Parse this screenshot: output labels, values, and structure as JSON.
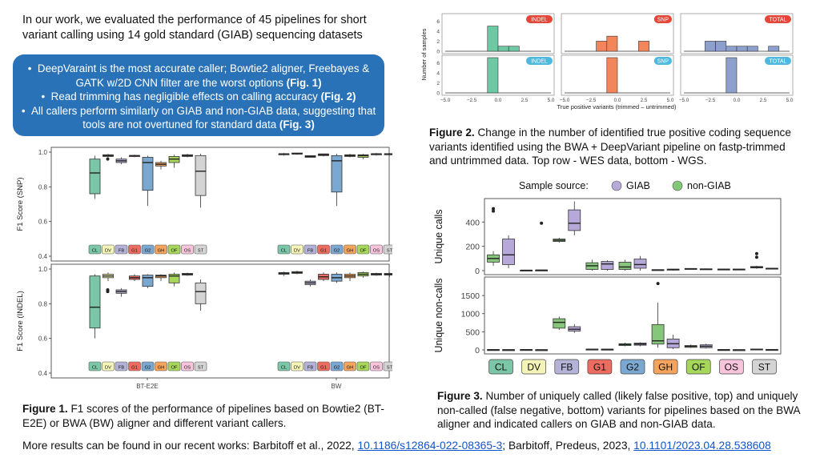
{
  "intro": "In our work, we evaluated the performance of 45 pipelines for short variant calling using 14 gold standard (GIAB) sequencing datasets",
  "bullets": [
    {
      "text": "DeepVaraint is the most accurate caller; Bowtie2 aligner, Freebayes & GATK w/2D CNN filter are the worst options",
      "ref": "(Fig. 1)"
    },
    {
      "text": "Read trimming has negligible effects on calling accuracy",
      "ref": "(Fig. 2)"
    },
    {
      "text": "All callers perform similarly on GIAB and non-GIAB data, suggesting that tools are not overtuned for standard data",
      "ref": "(Fig. 3)"
    }
  ],
  "bullet_marker": "•",
  "colors": {
    "CL": "#7bc6a6",
    "DV": "#f4f4b8",
    "FB": "#b4b2d6",
    "G1": "#ec6c60",
    "G2": "#7aa8d0",
    "GH": "#f4a45c",
    "OF": "#a6d65a",
    "OS": "#f8c4dc",
    "ST": "#d4d4d4",
    "giab": "#b6a8d8",
    "nongiab": "#86c67a",
    "bullet_bg": "#2a72b8",
    "fig2_indel": "#6cc9a3",
    "fig2_snp": "#f3855b",
    "fig2_total": "#8d9fcd",
    "badge_red": "#e4473a",
    "badge_blue": "#4fb8de"
  },
  "callers": [
    "CL",
    "DV",
    "FB",
    "G1",
    "G2",
    "GH",
    "OF",
    "OS",
    "ST"
  ],
  "fig1": {
    "ylabel_top": "F1 Score (SNP)",
    "ylabel_bottom": "F1 Score (INDEL)",
    "yticks": [
      "1.0",
      "0.8",
      "0.6",
      "0.4"
    ],
    "xgroups": [
      "BT-E2E",
      "BW"
    ],
    "snp": {
      "BT-E2E": [
        [
          0.73,
          0.76,
          0.88,
          0.96,
          0.98
        ],
        [
          0.97,
          0.975,
          0.98,
          0.985,
          0.99
        ],
        [
          0.93,
          0.94,
          0.95,
          0.96,
          0.97
        ],
        [
          0.97,
          0.975,
          0.98,
          0.98,
          0.985
        ],
        [
          0.69,
          0.78,
          0.94,
          0.97,
          0.98
        ],
        [
          0.9,
          0.92,
          0.93,
          0.94,
          0.95
        ],
        [
          0.91,
          0.94,
          0.96,
          0.975,
          0.985
        ],
        [
          0.97,
          0.975,
          0.98,
          0.985,
          0.99
        ],
        [
          0.68,
          0.75,
          0.89,
          0.98,
          0.99
        ]
      ],
      "BW": [
        [
          0.98,
          0.985,
          0.99,
          0.99,
          0.995
        ],
        [
          0.985,
          0.99,
          0.99,
          0.995,
          0.995
        ],
        [
          0.97,
          0.97,
          0.975,
          0.98,
          0.98
        ],
        [
          0.975,
          0.98,
          0.985,
          0.99,
          0.99
        ],
        [
          0.69,
          0.77,
          0.95,
          0.98,
          0.99
        ],
        [
          0.97,
          0.975,
          0.98,
          0.985,
          0.99
        ],
        [
          0.96,
          0.97,
          0.98,
          0.985,
          0.99
        ],
        [
          0.98,
          0.985,
          0.99,
          0.99,
          0.995
        ],
        [
          0.98,
          0.985,
          0.99,
          0.99,
          0.995
        ]
      ]
    },
    "indel": {
      "BT-E2E": [
        [
          0.6,
          0.66,
          0.78,
          0.96,
          0.97
        ],
        [
          0.93,
          0.95,
          0.96,
          0.97,
          0.98
        ],
        [
          0.84,
          0.86,
          0.87,
          0.88,
          0.89
        ],
        [
          0.93,
          0.94,
          0.95,
          0.96,
          0.97
        ],
        [
          0.89,
          0.9,
          0.95,
          0.965,
          0.97
        ],
        [
          0.93,
          0.95,
          0.96,
          0.965,
          0.97
        ],
        [
          0.9,
          0.92,
          0.96,
          0.97,
          0.98
        ],
        [
          0.96,
          0.965,
          0.97,
          0.975,
          0.98
        ],
        [
          0.76,
          0.8,
          0.87,
          0.92,
          0.94
        ]
      ],
      "BW": [
        [
          0.96,
          0.97,
          0.975,
          0.98,
          0.985
        ],
        [
          0.97,
          0.975,
          0.98,
          0.985,
          0.99
        ],
        [
          0.9,
          0.91,
          0.92,
          0.93,
          0.94
        ],
        [
          0.93,
          0.94,
          0.955,
          0.97,
          0.98
        ],
        [
          0.92,
          0.93,
          0.95,
          0.97,
          0.98
        ],
        [
          0.93,
          0.95,
          0.96,
          0.97,
          0.98
        ],
        [
          0.95,
          0.96,
          0.97,
          0.98,
          0.985
        ],
        [
          0.96,
          0.965,
          0.97,
          0.975,
          0.98
        ],
        [
          0.955,
          0.965,
          0.97,
          0.975,
          0.98
        ]
      ]
    }
  },
  "fig2": {
    "ylabel": "Number of samples",
    "xlabel": "True positive variants (trimmed – untrimmed)",
    "xticks": [
      "−5.0",
      "−2.5",
      "0.0",
      "2.5",
      "5.0"
    ],
    "yticks": [
      "0",
      "2",
      "4",
      "6"
    ],
    "panels": [
      {
        "label": "INDEL",
        "row": "top",
        "values": [
          [
            -0.5,
            5
          ],
          [
            0.5,
            1
          ],
          [
            1.5,
            1
          ]
        ]
      },
      {
        "label": "SNP",
        "row": "top",
        "values": [
          [
            -1.5,
            2
          ],
          [
            -0.5,
            3
          ],
          [
            2.5,
            2
          ]
        ]
      },
      {
        "label": "TOTAL",
        "row": "top",
        "values": [
          [
            -2.5,
            2
          ],
          [
            -1.5,
            2
          ],
          [
            -0.5,
            1
          ],
          [
            0.5,
            1
          ],
          [
            1.5,
            1
          ],
          [
            3.5,
            1
          ]
        ]
      },
      {
        "label": "INDEL",
        "row": "bottom",
        "values": [
          [
            -0.5,
            7
          ]
        ]
      },
      {
        "label": "SNP",
        "row": "bottom",
        "values": [
          [
            -0.5,
            7
          ]
        ]
      },
      {
        "label": "TOTAL",
        "row": "bottom",
        "values": [
          [
            -0.5,
            7
          ]
        ]
      }
    ]
  },
  "fig3": {
    "legend_title": "Sample source:",
    "legend_items": [
      "GIAB",
      "non-GIAB"
    ],
    "ylabel_top": "Unique calls",
    "ylabel_bottom": "Unique non-calls",
    "yticks_top": [
      "0",
      "200",
      "400"
    ],
    "yticks_bottom": [
      "0",
      "500",
      "1000",
      "1500"
    ],
    "calls": [
      [
        [
          20,
          50,
          130,
          260,
          290
        ],
        [
          40,
          70,
          100,
          130,
          160
        ]
      ],
      [
        [
          2,
          3,
          4,
          5,
          6
        ],
        [
          1,
          2,
          3,
          4,
          5
        ]
      ],
      [
        [
          290,
          330,
          390,
          500,
          570
        ],
        [
          230,
          240,
          250,
          260,
          270
        ]
      ],
      [
        [
          0,
          10,
          55,
          75,
          85
        ],
        [
          0,
          10,
          40,
          65,
          90
        ]
      ],
      [
        [
          0,
          20,
          50,
          95,
          120
        ],
        [
          0,
          10,
          30,
          70,
          90
        ]
      ],
      [
        [
          0,
          5,
          10,
          12,
          14
        ],
        [
          2,
          4,
          6,
          8,
          10
        ]
      ],
      [
        [
          5,
          8,
          12,
          15,
          18
        ],
        [
          8,
          10,
          14,
          18,
          20
        ]
      ],
      [
        [
          3,
          5,
          10,
          13,
          15
        ],
        [
          6,
          9,
          11,
          13,
          16
        ]
      ],
      [
        [
          10,
          14,
          18,
          20,
          22
        ],
        [
          15,
          22,
          28,
          34,
          40
        ]
      ]
    ],
    "noncalls": [
      [
        [
          2,
          3,
          4,
          5,
          6
        ],
        [
          2,
          4,
          6,
          8,
          10
        ]
      ],
      [
        [
          1,
          2,
          3,
          4,
          5
        ],
        [
          3,
          5,
          7,
          9,
          12
        ]
      ],
      [
        [
          470,
          520,
          570,
          640,
          710
        ],
        [
          550,
          600,
          760,
          860,
          920
        ]
      ],
      [
        [
          8,
          12,
          16,
          20,
          24
        ],
        [
          10,
          14,
          18,
          22,
          26
        ]
      ],
      [
        [
          100,
          130,
          160,
          190,
          210
        ],
        [
          100,
          120,
          150,
          170,
          200
        ]
      ],
      [
        [
          20,
          60,
          170,
          300,
          420
        ],
        [
          60,
          160,
          250,
          700,
          1300
        ]
      ],
      [
        [
          40,
          60,
          100,
          140,
          170
        ],
        [
          50,
          70,
          100,
          120,
          150
        ]
      ],
      [
        [
          1,
          2,
          3,
          4,
          5
        ],
        [
          2,
          4,
          6,
          8,
          10
        ]
      ],
      [
        [
          3,
          5,
          8,
          10,
          12
        ],
        [
          8,
          12,
          18,
          24,
          30
        ]
      ]
    ],
    "outliers_calls": [
      [
        1,
        490
      ],
      [
        1,
        510
      ],
      [
        2,
        390
      ],
      [
        17,
        110
      ],
      [
        17,
        140
      ]
    ],
    "outliers_noncalls": [
      [
        11,
        1830
      ]
    ]
  },
  "captions": {
    "fig1_label": "Figure 1.",
    "fig1_text": "F1 scores of the performance of pipelines based on Bowtie2 (BT-E2E) or BWA (BW) aligner and different variant callers.",
    "fig2_label": "Figure 2.",
    "fig2_text": "Change in the number of identified true positive coding sequence variants identified using the BWA + DeepVariant pipeline on fastp-trimmed and untrimmed data. Top row - WES data, bottom - WGS.",
    "fig3_label": "Figure 3.",
    "fig3_text": "Number of uniquely called (likely false positive, top) and uniquely non-called (false negative, bottom) variants for pipelines based on the BWA aligner and indicated callers on GIAB and non-GIAB data."
  },
  "footer": {
    "prefix": "More results can be found in our recent works: Barbitoff et al., 2022, ",
    "link1": "10.1186/s12864-022-08365-3",
    "middle": "; Barbitoff, Predeus, 2023, ",
    "link2": "10.1101/2023.04.28.538608"
  }
}
